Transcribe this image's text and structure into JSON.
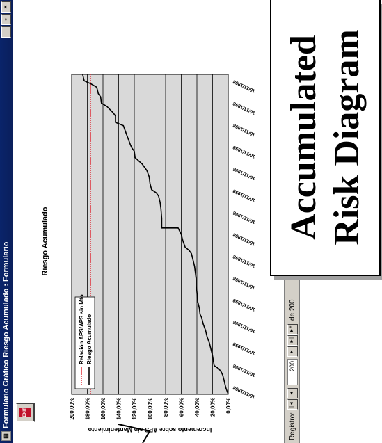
{
  "window": {
    "title": "Formulario Gráfico Riesgo Acumulado : Formulario",
    "min_label": "_",
    "max_label": "▫",
    "close_label": "×"
  },
  "close_form_button": {
    "label": "EXIT"
  },
  "statusbar": {
    "records_label": "Registro:",
    "first_label": "|◄",
    "prev_label": "◄",
    "current_record": "200",
    "next_label": "►",
    "last_label": "►|",
    "new_label": "►*",
    "of_text": "de 200"
  },
  "caption": {
    "line1": "Accumulated",
    "line2": "Risk Diagram"
  },
  "colors": {
    "titlebar": "#0a246a",
    "plot_bg": "#d9d9d9",
    "risk_line": "#000000",
    "threshold_line": "#e0303a"
  },
  "chart_data": {
    "type": "line",
    "title": "Riesgo Acumulado",
    "xlabel": "",
    "ylabel": "Incremento sobre APS sin Mantenimiento",
    "x_ticks": [
      "10/11/1998",
      "10/11/1998",
      "10/11/1998",
      "10/11/1998",
      "10/11/1998",
      "10/11/1998",
      "10/11/1998",
      "10/11/1998",
      "10/11/1998",
      "10/11/1998",
      "10/11/1998",
      "10/11/1998",
      "10/11/1998",
      "10/11/1998",
      "10/11/1998"
    ],
    "y_ticks": [
      "0,00%",
      "20,00%",
      "40,00%",
      "60,00%",
      "80,00%",
      "100,00%",
      "120,00%",
      "140,00%",
      "160,00%",
      "180,00%",
      "200,00%"
    ],
    "ylim": [
      0,
      200
    ],
    "grid": true,
    "legend_position": "upper-left",
    "series": [
      {
        "name": "Relación APS/APS sin Mto",
        "style": "dotted",
        "values": [
          [
            0,
            176
          ],
          [
            100,
            176
          ]
        ]
      },
      {
        "name": "Riesgo Acumulado",
        "style": "solid",
        "values": [
          [
            0,
            0
          ],
          [
            2,
            3
          ],
          [
            4,
            5
          ],
          [
            6,
            7
          ],
          [
            7,
            9
          ],
          [
            8,
            12
          ],
          [
            9,
            18
          ],
          [
            12,
            20
          ],
          [
            14,
            22
          ],
          [
            16,
            24
          ],
          [
            18,
            27
          ],
          [
            20,
            29
          ],
          [
            22,
            32
          ],
          [
            24,
            34
          ],
          [
            25,
            36
          ],
          [
            27,
            37
          ],
          [
            29,
            39
          ],
          [
            32,
            40
          ],
          [
            34,
            41
          ],
          [
            36,
            41
          ],
          [
            38,
            42
          ],
          [
            40,
            43
          ],
          [
            42,
            45
          ],
          [
            44,
            47
          ],
          [
            45,
            50
          ],
          [
            46,
            55
          ],
          [
            48,
            58
          ],
          [
            50,
            60
          ],
          [
            52,
            64
          ],
          [
            52,
            85
          ],
          [
            55,
            85
          ],
          [
            58,
            86
          ],
          [
            60,
            87
          ],
          [
            62,
            89
          ],
          [
            63,
            92
          ],
          [
            64,
            98
          ],
          [
            66,
            100
          ],
          [
            68,
            101
          ],
          [
            70,
            104
          ],
          [
            72,
            110
          ],
          [
            74,
            119
          ],
          [
            76,
            120
          ],
          [
            77,
            123
          ],
          [
            78,
            125
          ],
          [
            80,
            128
          ],
          [
            82,
            131
          ],
          [
            84,
            134
          ],
          [
            85,
            144
          ],
          [
            87,
            144
          ],
          [
            88,
            147
          ],
          [
            90,
            155
          ],
          [
            91,
            162
          ],
          [
            93,
            163
          ],
          [
            94,
            166
          ],
          [
            96,
            168
          ],
          [
            97,
            175
          ],
          [
            98,
            184
          ],
          [
            100,
            186
          ]
        ]
      }
    ]
  }
}
